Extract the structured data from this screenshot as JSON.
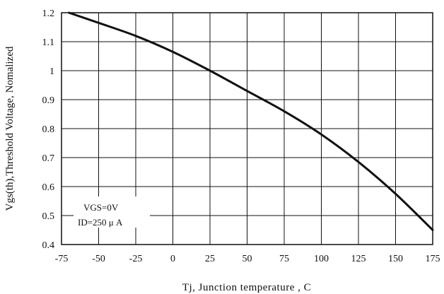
{
  "chart_data": {
    "type": "line",
    "title": "",
    "xlabel": "Tj, Junction temperature , C",
    "ylabel": "Vgs(th),Threshold Voltage, Nomalized",
    "xlim": [
      -75,
      175
    ],
    "ylim": [
      0.4,
      1.2
    ],
    "x_ticks": [
      "-75",
      "-50",
      "-25",
      "0",
      "25",
      "50",
      "75",
      "100",
      "125",
      "150",
      "175"
    ],
    "y_ticks": [
      "0.4",
      "0.5",
      "0.6",
      "0.7",
      "0.8",
      "0.9",
      "1",
      "1.1",
      "1.2"
    ],
    "grid": true,
    "annotations": [
      "VGS=0V",
      "ID=250 μ A"
    ],
    "series": [
      {
        "x": [
          -70,
          -50,
          -25,
          0,
          25,
          50,
          75,
          100,
          125,
          150,
          175
        ],
        "y": [
          1.2,
          1.165,
          1.12,
          1.065,
          1.0,
          0.93,
          0.86,
          0.78,
          0.685,
          0.575,
          0.45
        ]
      }
    ],
    "colors": {
      "line": "#111111",
      "grid": "#111111",
      "background": "#ffffff"
    }
  }
}
